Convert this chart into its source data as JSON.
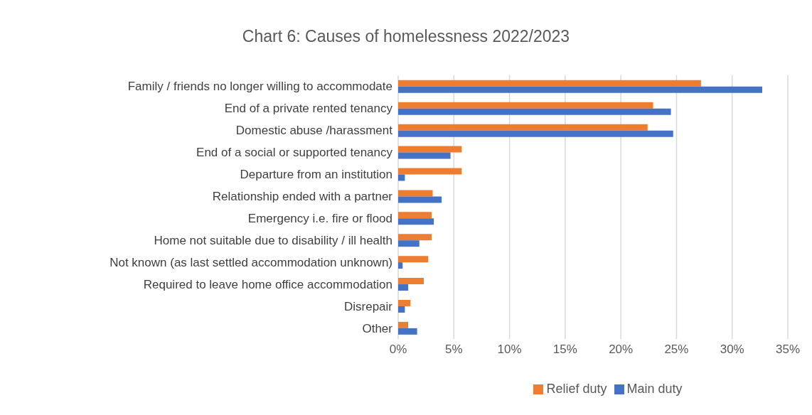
{
  "chart_data": {
    "type": "bar",
    "orientation": "horizontal",
    "title": "Chart 6: Causes of homelessness 2022/2023",
    "categories": [
      "Family / friends no longer willing to accommodate",
      "End of a private rented tenancy",
      "Domestic abuse /harassment",
      "End of a social or supported tenancy",
      "Departure from an institution",
      "Relationship ended with a partner",
      "Emergency i.e. fire or flood",
      "Home not suitable due to disability / ill health",
      "Not known (as last settled accommodation unknown)",
      "Required to leave home office accommodation",
      "Disrepair",
      "Other"
    ],
    "series": [
      {
        "name": "Relief duty",
        "color": "#ed7d31",
        "values": [
          27.2,
          22.9,
          22.4,
          5.7,
          5.7,
          3.1,
          3.0,
          3.0,
          2.7,
          2.3,
          1.1,
          0.9
        ]
      },
      {
        "name": "Main duty",
        "color": "#4472c4",
        "values": [
          32.7,
          24.5,
          24.7,
          4.7,
          0.6,
          3.9,
          3.2,
          1.9,
          0.4,
          0.9,
          0.6,
          1.7
        ]
      }
    ],
    "xlim": [
      0,
      35
    ],
    "xticks": [
      {
        "value": 0,
        "label": "0%"
      },
      {
        "value": 5,
        "label": "5%"
      },
      {
        "value": 10,
        "label": "10%"
      },
      {
        "value": 15,
        "label": "15%"
      },
      {
        "value": 20,
        "label": "20%"
      },
      {
        "value": 25,
        "label": "25%"
      },
      {
        "value": 30,
        "label": "30%"
      },
      {
        "value": 35,
        "label": "35%"
      }
    ],
    "grid": "x",
    "legend": "bottom"
  }
}
